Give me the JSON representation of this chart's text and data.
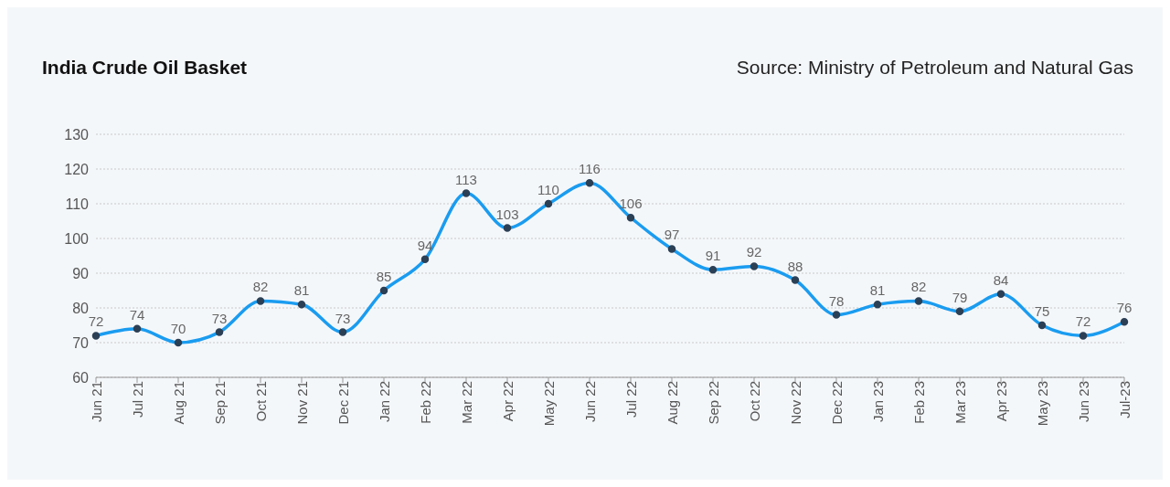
{
  "chart_data": {
    "type": "line",
    "title": "India Crude Oil Basket",
    "annotations": [
      "Source: Ministry of Petroleum and Natural Gas"
    ],
    "categories": [
      "Jun 21",
      "Jul 21",
      "Aug 21",
      "Sep 21",
      "Oct 21",
      "Nov 21",
      "Dec 21",
      "Jan 22",
      "Feb 22",
      "Mar 22",
      "Apr 22",
      "May 22",
      "Jun 22",
      "Jul 22",
      "Aug 22",
      "Sep 22",
      "Oct 22",
      "Nov 22",
      "Dec 22",
      "Jan 23",
      "Feb 23",
      "Mar 23",
      "Apr 23",
      "May 23",
      "Jun 23",
      "Jul-23"
    ],
    "series": [
      {
        "color": "#1a9cf0",
        "values": [
          72,
          74,
          70,
          73,
          82,
          81,
          73,
          85,
          94,
          113,
          103,
          110,
          116,
          106,
          97,
          91,
          92,
          88,
          78,
          81,
          82,
          79,
          84,
          75,
          72,
          76
        ]
      }
    ],
    "ylim": [
      60,
      130
    ],
    "yticks": [
      60,
      70,
      80,
      90,
      100,
      110,
      120,
      130
    ],
    "grid": "y",
    "marker": "circle",
    "line_style": "solid",
    "data_labels": true
  }
}
